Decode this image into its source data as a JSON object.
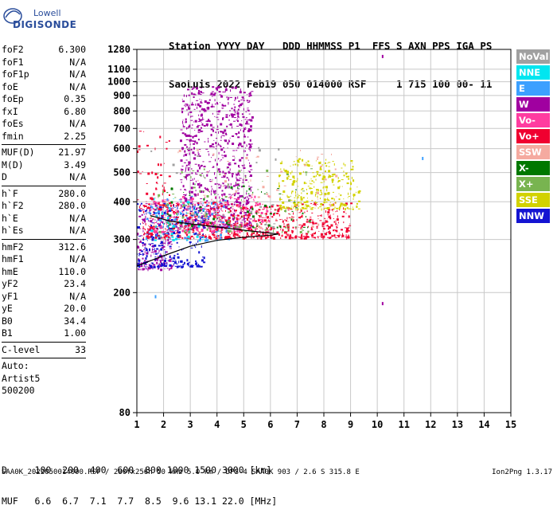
{
  "logo": {
    "line1": "Lowell",
    "line2": "DIGISONDE"
  },
  "header": {
    "line1": "Station YYYY DAY   DDD HHMMSS P1  FFS S AXN PPS IGA PS",
    "line2": "SaoLuis 2022 Feb19 050 014000 RSF     1 715 100 00- 11"
  },
  "params_group1": [
    {
      "k": "foF2",
      "v": "6.300"
    },
    {
      "k": "foF1",
      "v": "N/A"
    },
    {
      "k": "foF1p",
      "v": "N/A"
    },
    {
      "k": "foE",
      "v": "N/A"
    },
    {
      "k": "foEp",
      "v": "0.35"
    },
    {
      "k": "fxI",
      "v": "6.80"
    },
    {
      "k": "foEs",
      "v": "N/A"
    },
    {
      "k": "fmin",
      "v": "2.25"
    }
  ],
  "params_group2": [
    {
      "k": "MUF(D)",
      "v": "21.97"
    },
    {
      "k": "M(D)",
      "v": "3.49"
    },
    {
      "k": "D",
      "v": "N/A"
    }
  ],
  "params_group3": [
    {
      "k": "h`F",
      "v": "280.0"
    },
    {
      "k": "h`F2",
      "v": "280.0"
    },
    {
      "k": "h`E",
      "v": "N/A"
    },
    {
      "k": "h`Es",
      "v": "N/A"
    }
  ],
  "params_group4": [
    {
      "k": "hmF2",
      "v": "312.6"
    },
    {
      "k": "hmF1",
      "v": "N/A"
    },
    {
      "k": "hmE",
      "v": "110.0"
    },
    {
      "k": "yF2",
      "v": "23.4"
    },
    {
      "k": "yF1",
      "v": "N/A"
    },
    {
      "k": "yE",
      "v": "20.0"
    },
    {
      "k": "B0",
      "v": "34.4"
    },
    {
      "k": "B1",
      "v": "1.00"
    }
  ],
  "clevel": {
    "k": "C-level",
    "v": "33"
  },
  "auto": [
    "Auto:",
    "Artist5",
    "500200"
  ],
  "legend": [
    {
      "label": "NoVal",
      "color": "#a0a0a0"
    },
    {
      "label": "NNE",
      "color": "#00e6f0"
    },
    {
      "label": "E",
      "color": "#3ca0ff"
    },
    {
      "label": "W",
      "color": "#a000a0"
    },
    {
      "label": "Vo-",
      "color": "#ff3ca0"
    },
    {
      "label": "Vo+",
      "color": "#f00030"
    },
    {
      "label": "SSW",
      "color": "#f5aaa0"
    },
    {
      "label": "X-",
      "color": "#007800"
    },
    {
      "label": "X+",
      "color": "#78b450"
    },
    {
      "label": "SSE",
      "color": "#d2d200"
    },
    {
      "label": "NNW",
      "color": "#1414d2"
    }
  ],
  "muf": {
    "line1": "D     100  200  400  600  800 1000 1500 3000 [km]",
    "line2": "MUF   6.6  6.7  7.1  7.7  8.5  9.6 13.1 22.0 [MHz]"
  },
  "footer": "SAA0K_2022050014000.RSF / 280fx256h 50 kHz 5.0 km / DPS-4 SAA0K 903 / 2.6 S 315.8 E",
  "version": "Ion2Png 1.3.17",
  "chart_data": {
    "type": "scatter",
    "title": "",
    "xlabel": "",
    "ylabel": "",
    "xlim": [
      1,
      15
    ],
    "ylim": [
      80,
      1280
    ],
    "yscale": "log",
    "xticks": [
      "1",
      "2",
      "3",
      "4",
      "5",
      "6",
      "7",
      "8",
      "9",
      "10",
      "11",
      "12",
      "13",
      "14",
      "15"
    ],
    "yticks": [
      {
        "v": 80,
        "label": "80"
      },
      {
        "v": 200,
        "label": "200"
      },
      {
        "v": 300,
        "label": "300"
      },
      {
        "v": 400,
        "label": "400"
      },
      {
        "v": 500,
        "label": "500"
      },
      {
        "v": 600,
        "label": "600"
      },
      {
        "v": 700,
        "label": "700"
      },
      {
        "v": 800,
        "label": "800"
      },
      {
        "v": 900,
        "label": "900"
      },
      {
        "v": 1000,
        "label": "1000"
      },
      {
        "v": 1100,
        "label": "1100"
      },
      {
        "v": 1280,
        "label": "1280"
      }
    ],
    "grid": true,
    "legend_position": "right",
    "profile_curve": {
      "x": [
        1.0,
        2.0,
        3.0,
        4.0,
        5.0,
        6.0,
        6.3
      ],
      "y": [
        245,
        265,
        285,
        298,
        305,
        310,
        312.6
      ]
    },
    "trace_curve": {
      "x": [
        1.5,
        2.25,
        3,
        4,
        5,
        6,
        6.3
      ],
      "y": [
        360,
        345,
        338,
        330,
        322,
        315,
        312.6
      ]
    },
    "clusters": [
      {
        "color": "#a000a0",
        "x": [
          2.6,
          5.3
        ],
        "y": [
          330,
          970
        ],
        "n": 900
      },
      {
        "color": "#a000a0",
        "x": [
          1.0,
          2.3
        ],
        "y": [
          240,
          400
        ],
        "n": 220
      },
      {
        "color": "#f00030",
        "x": [
          1.2,
          9.0
        ],
        "y": [
          305,
          400
        ],
        "n": 750
      },
      {
        "color": "#ff3ca0",
        "x": [
          1.5,
          6.0
        ],
        "y": [
          320,
          420
        ],
        "n": 250
      },
      {
        "color": "#1414d2",
        "x": [
          1.0,
          3.5
        ],
        "y": [
          245,
          400
        ],
        "n": 260
      },
      {
        "color": "#d2d200",
        "x": [
          6.3,
          9.3
        ],
        "y": [
          380,
          560
        ],
        "n": 300
      },
      {
        "color": "#78b450",
        "x": [
          1.5,
          7.5
        ],
        "y": [
          320,
          520
        ],
        "n": 120
      },
      {
        "color": "#3ca0ff",
        "x": [
          1.3,
          4.5
        ],
        "y": [
          300,
          420
        ],
        "n": 120
      },
      {
        "color": "#007800",
        "x": [
          2.0,
          7.5
        ],
        "y": [
          330,
          460
        ],
        "n": 80
      },
      {
        "color": "#f5aaa0",
        "x": [
          2.5,
          8.5
        ],
        "y": [
          330,
          600
        ],
        "n": 90
      },
      {
        "color": "#00e6f0",
        "x": [
          1.5,
          3.5
        ],
        "y": [
          300,
          420
        ],
        "n": 50
      },
      {
        "color": "#a0a0a0",
        "x": [
          1.5,
          6.5
        ],
        "y": [
          330,
          650
        ],
        "n": 40
      },
      {
        "color": "#f00030",
        "x": [
          1.0,
          2.2
        ],
        "y": [
          380,
          700
        ],
        "n": 60
      }
    ],
    "isolated_points": [
      {
        "x": 10.2,
        "y": 1220,
        "color": "#a000a0"
      },
      {
        "x": 10.2,
        "y": 185,
        "color": "#a000a0"
      },
      {
        "x": 11.7,
        "y": 560,
        "color": "#3ca0ff"
      },
      {
        "x": 1.7,
        "y": 195,
        "color": "#3ca0ff"
      }
    ]
  }
}
